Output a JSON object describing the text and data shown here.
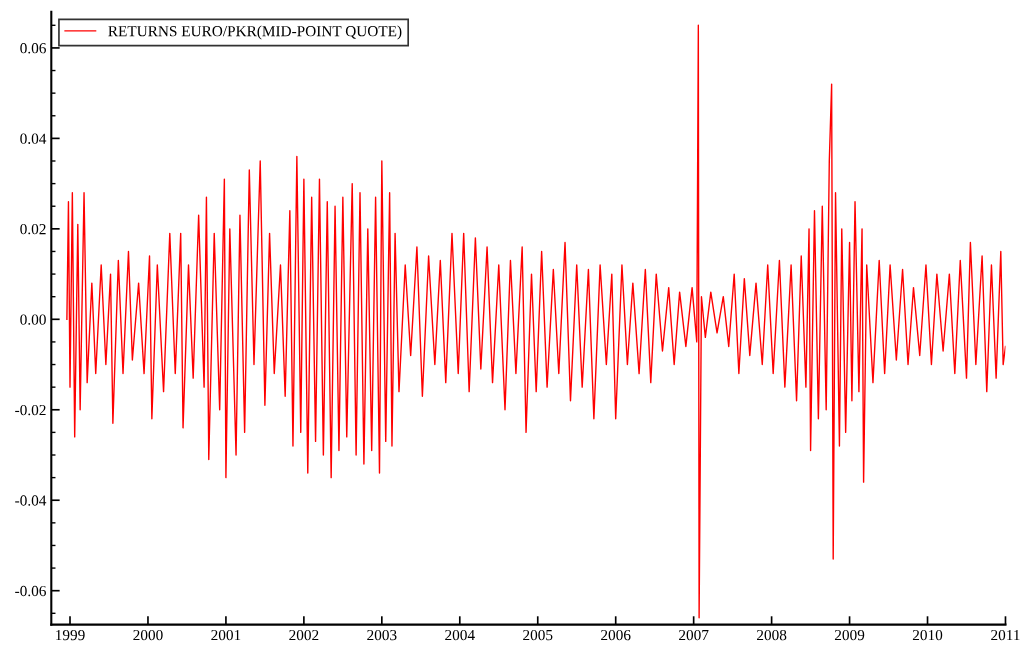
{
  "chart_data": {
    "type": "line",
    "xlim": [
      1998.76,
      2011.0
    ],
    "xticks": [
      1999,
      2000,
      2001,
      2002,
      2003,
      2004,
      2005,
      2006,
      2007,
      2008,
      2009,
      2010,
      2011
    ],
    "ylim": [
      -0.0675,
      0.068
    ],
    "yticks": [
      -0.06,
      -0.04,
      -0.02,
      {
        "value": 0,
        "label": "0.00"
      },
      0.02,
      0.04,
      0.06,
      {
        "value": -0.065,
        "label": null
      },
      {
        "value": -0.055,
        "label": null
      },
      {
        "value": -0.05,
        "label": null
      },
      {
        "value": -0.045,
        "label": null
      },
      {
        "value": -0.035,
        "label": null
      },
      {
        "value": -0.03,
        "label": null
      },
      {
        "value": -0.025,
        "label": null
      },
      {
        "value": -0.015,
        "label": null
      },
      {
        "value": -0.01,
        "label": null
      },
      {
        "value": -0.005,
        "label": null
      },
      {
        "value": 0.005,
        "label": null
      },
      {
        "value": 0.01,
        "label": null
      },
      {
        "value": 0.015,
        "label": null
      },
      {
        "value": 0.025,
        "label": null
      },
      {
        "value": 0.03,
        "label": null
      },
      {
        "value": 0.035,
        "label": null
      },
      {
        "value": 0.045,
        "label": null
      },
      {
        "value": 0.05,
        "label": null
      },
      {
        "value": 0.055,
        "label": null
      },
      {
        "value": 0.065,
        "label": null
      }
    ],
    "grid": false,
    "legend": "top left",
    "line_style": "solid",
    "series": [
      {
        "name": "RETURNS EURO/PKR(MID-POINT QUOTE)",
        "color": "#ff0000",
        "x": [
          1998.96,
          1998.98,
          1999.0,
          1999.03,
          1999.06,
          1999.1,
          1999.13,
          1999.18,
          1999.22,
          1999.28,
          1999.33,
          1999.4,
          1999.46,
          1999.52,
          1999.55,
          1999.62,
          1999.68,
          1999.75,
          1999.8,
          1999.88,
          1999.95,
          2000.02,
          2000.05,
          2000.12,
          2000.2,
          2000.28,
          2000.35,
          2000.42,
          2000.45,
          2000.52,
          2000.58,
          2000.65,
          2000.72,
          2000.75,
          2000.78,
          2000.85,
          2000.92,
          2000.98,
          2001.0,
          2001.05,
          2001.13,
          2001.18,
          2001.24,
          2001.3,
          2001.36,
          2001.44,
          2001.5,
          2001.56,
          2001.62,
          2001.7,
          2001.76,
          2001.82,
          2001.86,
          2001.91,
          2001.96,
          2002.0,
          2002.05,
          2002.1,
          2002.15,
          2002.2,
          2002.25,
          2002.3,
          2002.35,
          2002.4,
          2002.45,
          2002.5,
          2002.55,
          2002.62,
          2002.67,
          2002.72,
          2002.77,
          2002.82,
          2002.87,
          2002.92,
          2002.97,
          2003.0,
          2003.05,
          2003.1,
          2003.13,
          2003.17,
          2003.22,
          2003.3,
          2003.37,
          2003.45,
          2003.52,
          2003.6,
          2003.68,
          2003.75,
          2003.82,
          2003.9,
          2003.98,
          2004.05,
          2004.12,
          2004.2,
          2004.27,
          2004.35,
          2004.42,
          2004.5,
          2004.58,
          2004.65,
          2004.72,
          2004.8,
          2004.85,
          2004.92,
          2004.98,
          2005.05,
          2005.12,
          2005.2,
          2005.27,
          2005.35,
          2005.42,
          2005.5,
          2005.57,
          2005.65,
          2005.72,
          2005.8,
          2005.88,
          2005.95,
          2006.0,
          2006.08,
          2006.15,
          2006.22,
          2006.3,
          2006.38,
          2006.45,
          2006.52,
          2006.6,
          2006.68,
          2006.75,
          2006.82,
          2006.9,
          2006.98,
          2007.04,
          2007.06,
          2007.07,
          2007.1,
          2007.15,
          2007.22,
          2007.3,
          2007.38,
          2007.45,
          2007.52,
          2007.58,
          2007.65,
          2007.72,
          2007.8,
          2007.88,
          2007.95,
          2008.02,
          2008.1,
          2008.17,
          2008.25,
          2008.32,
          2008.38,
          2008.44,
          2008.48,
          2008.5,
          2008.55,
          2008.6,
          2008.65,
          2008.7,
          2008.74,
          2008.77,
          2008.79,
          2008.82,
          2008.87,
          2008.9,
          2008.95,
          2009.0,
          2009.03,
          2009.07,
          2009.12,
          2009.16,
          2009.18,
          2009.22,
          2009.3,
          2009.38,
          2009.45,
          2009.52,
          2009.6,
          2009.68,
          2009.75,
          2009.82,
          2009.9,
          2009.98,
          2010.05,
          2010.12,
          2010.2,
          2010.28,
          2010.35,
          2010.42,
          2010.5,
          2010.55,
          2010.62,
          2010.7,
          2010.76,
          2010.82,
          2010.88,
          2010.94,
          2010.97,
          2011.0
        ],
        "values": [
          0.0,
          0.026,
          -0.015,
          0.028,
          -0.026,
          0.021,
          -0.02,
          0.028,
          -0.014,
          0.008,
          -0.012,
          0.012,
          -0.01,
          0.01,
          -0.023,
          0.013,
          -0.012,
          0.015,
          -0.009,
          0.008,
          -0.012,
          0.014,
          -0.022,
          0.012,
          -0.016,
          0.019,
          -0.012,
          0.019,
          -0.024,
          0.012,
          -0.013,
          0.023,
          -0.015,
          0.027,
          -0.031,
          0.019,
          -0.02,
          0.031,
          -0.035,
          0.02,
          -0.03,
          0.023,
          -0.025,
          0.033,
          -0.01,
          0.035,
          -0.019,
          0.019,
          -0.012,
          0.012,
          -0.017,
          0.024,
          -0.028,
          0.036,
          -0.025,
          0.031,
          -0.034,
          0.027,
          -0.027,
          0.031,
          -0.03,
          0.026,
          -0.035,
          0.025,
          -0.029,
          0.027,
          -0.026,
          0.03,
          -0.03,
          0.028,
          -0.032,
          0.02,
          -0.029,
          0.027,
          -0.034,
          0.035,
          -0.027,
          0.028,
          -0.028,
          0.019,
          -0.016,
          0.012,
          -0.008,
          0.016,
          -0.017,
          0.014,
          -0.01,
          0.013,
          -0.014,
          0.019,
          -0.012,
          0.019,
          -0.016,
          0.018,
          -0.011,
          0.016,
          -0.014,
          0.012,
          -0.02,
          0.013,
          -0.012,
          0.016,
          -0.025,
          0.01,
          -0.016,
          0.015,
          -0.015,
          0.011,
          -0.012,
          0.017,
          -0.018,
          0.012,
          -0.015,
          0.011,
          -0.022,
          0.012,
          -0.01,
          0.01,
          -0.022,
          0.012,
          -0.01,
          0.008,
          -0.012,
          0.011,
          -0.014,
          0.01,
          -0.007,
          0.007,
          -0.01,
          0.006,
          -0.006,
          0.007,
          -0.005,
          0.065,
          -0.066,
          0.005,
          -0.004,
          0.006,
          -0.003,
          0.005,
          -0.006,
          0.01,
          -0.012,
          0.009,
          -0.008,
          0.008,
          -0.01,
          0.012,
          -0.012,
          0.013,
          -0.015,
          0.012,
          -0.018,
          0.014,
          -0.015,
          0.02,
          -0.029,
          0.024,
          -0.022,
          0.025,
          -0.02,
          0.035,
          0.052,
          -0.053,
          0.028,
          -0.028,
          0.02,
          -0.025,
          0.017,
          -0.018,
          0.026,
          -0.016,
          0.02,
          -0.036,
          0.012,
          -0.014,
          0.013,
          -0.012,
          0.012,
          -0.009,
          0.011,
          -0.01,
          0.007,
          -0.008,
          0.012,
          -0.01,
          0.01,
          -0.007,
          0.01,
          -0.012,
          0.013,
          -0.013,
          0.017,
          -0.01,
          0.014,
          -0.016,
          0.012,
          -0.013,
          0.015,
          -0.01,
          -0.006
        ]
      }
    ]
  }
}
